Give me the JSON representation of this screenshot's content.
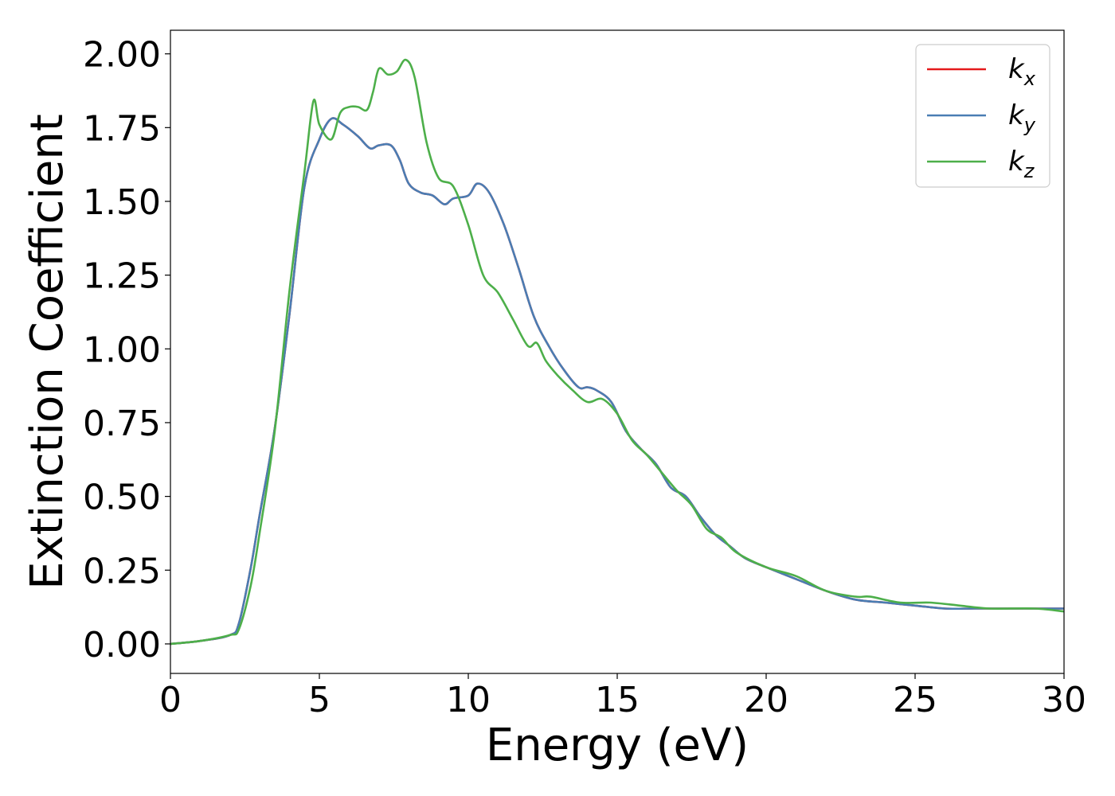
{
  "chart_data": {
    "type": "line",
    "xlabel": "Energy (eV)",
    "ylabel": "Extinction Coefficient",
    "xlim": [
      0,
      30
    ],
    "ylim": [
      -0.1,
      2.08
    ],
    "xticks": [
      0,
      5,
      10,
      15,
      20,
      25,
      30
    ],
    "xtick_labels": [
      "0",
      "5",
      "10",
      "15",
      "20",
      "25",
      "30"
    ],
    "yticks": [
      0,
      0.25,
      0.5,
      0.75,
      1.0,
      1.25,
      1.5,
      1.75,
      2.0
    ],
    "ytick_labels": [
      "0.00",
      "0.25",
      "0.50",
      "0.75",
      "1.00",
      "1.25",
      "1.50",
      "1.75",
      "2.00"
    ],
    "grid": false,
    "legend_position": "top-right",
    "series": [
      {
        "name": "k",
        "subscript": "x",
        "color": "#e41a1c",
        "x": [
          0,
          1,
          2,
          2.3,
          2.7,
          3.0,
          3.5,
          4.0,
          4.5,
          5.0,
          5.4,
          5.8,
          6.3,
          6.7,
          7.0,
          7.4,
          7.7,
          8.0,
          8.4,
          8.8,
          9.2,
          9.5,
          10.0,
          10.3,
          10.7,
          11.2,
          11.7,
          12.2,
          12.7,
          13.2,
          13.7,
          14.0,
          14.3,
          14.8,
          15.3,
          15.8,
          16.3,
          16.8,
          17.3,
          17.8,
          18.3,
          18.8,
          19.3,
          20.0,
          21.0,
          22.0,
          23.0,
          24.0,
          25.0,
          26.0,
          27.0,
          28.0,
          29.0,
          30.0
        ],
        "y": [
          0.0,
          0.01,
          0.03,
          0.07,
          0.26,
          0.44,
          0.73,
          1.12,
          1.55,
          1.71,
          1.78,
          1.76,
          1.72,
          1.68,
          1.69,
          1.69,
          1.64,
          1.56,
          1.53,
          1.52,
          1.49,
          1.51,
          1.52,
          1.56,
          1.53,
          1.42,
          1.27,
          1.11,
          1.01,
          0.93,
          0.87,
          0.87,
          0.86,
          0.82,
          0.72,
          0.66,
          0.61,
          0.53,
          0.5,
          0.43,
          0.37,
          0.33,
          0.29,
          0.26,
          0.22,
          0.18,
          0.15,
          0.14,
          0.13,
          0.12,
          0.12,
          0.12,
          0.12,
          0.12
        ]
      },
      {
        "name": "k",
        "subscript": "y",
        "color": "#4a7db3",
        "x": [
          0,
          1,
          2,
          2.3,
          2.7,
          3.0,
          3.5,
          4.0,
          4.5,
          5.0,
          5.4,
          5.8,
          6.3,
          6.7,
          7.0,
          7.4,
          7.7,
          8.0,
          8.4,
          8.8,
          9.2,
          9.5,
          10.0,
          10.3,
          10.7,
          11.2,
          11.7,
          12.2,
          12.7,
          13.2,
          13.7,
          14.0,
          14.3,
          14.8,
          15.3,
          15.8,
          16.3,
          16.8,
          17.3,
          17.8,
          18.3,
          18.8,
          19.3,
          20.0,
          21.0,
          22.0,
          23.0,
          24.0,
          25.0,
          26.0,
          27.0,
          28.0,
          29.0,
          30.0
        ],
        "y": [
          0.0,
          0.01,
          0.03,
          0.07,
          0.26,
          0.44,
          0.73,
          1.12,
          1.55,
          1.71,
          1.78,
          1.76,
          1.72,
          1.68,
          1.69,
          1.69,
          1.64,
          1.56,
          1.53,
          1.52,
          1.49,
          1.51,
          1.52,
          1.56,
          1.53,
          1.42,
          1.27,
          1.11,
          1.01,
          0.93,
          0.87,
          0.87,
          0.86,
          0.82,
          0.72,
          0.66,
          0.61,
          0.53,
          0.5,
          0.43,
          0.37,
          0.33,
          0.29,
          0.26,
          0.22,
          0.18,
          0.15,
          0.14,
          0.13,
          0.12,
          0.12,
          0.12,
          0.12,
          0.12
        ]
      },
      {
        "name": "k",
        "subscript": "z",
        "color": "#4daf4a",
        "x": [
          0,
          1,
          2,
          2.3,
          2.7,
          3.0,
          3.5,
          4.0,
          4.5,
          4.8,
          5.0,
          5.4,
          5.7,
          6.0,
          6.3,
          6.6,
          6.8,
          7.0,
          7.3,
          7.6,
          7.9,
          8.2,
          8.6,
          9.0,
          9.5,
          10.0,
          10.5,
          11.0,
          11.5,
          12.0,
          12.3,
          12.6,
          13.0,
          13.5,
          14.0,
          14.5,
          15.0,
          15.5,
          16.0,
          16.5,
          17.0,
          17.5,
          18.0,
          18.5,
          19.0,
          20.0,
          21.0,
          22.0,
          23.0,
          23.5,
          24.5,
          25.5,
          26.5,
          27.5,
          29.0,
          30.0
        ],
        "y": [
          0.0,
          0.01,
          0.03,
          0.05,
          0.2,
          0.38,
          0.72,
          1.2,
          1.6,
          1.84,
          1.76,
          1.71,
          1.8,
          1.82,
          1.82,
          1.81,
          1.87,
          1.95,
          1.93,
          1.94,
          1.98,
          1.92,
          1.7,
          1.58,
          1.55,
          1.42,
          1.25,
          1.19,
          1.1,
          1.01,
          1.02,
          0.96,
          0.91,
          0.86,
          0.82,
          0.83,
          0.78,
          0.69,
          0.64,
          0.58,
          0.52,
          0.47,
          0.39,
          0.36,
          0.31,
          0.26,
          0.23,
          0.18,
          0.16,
          0.16,
          0.14,
          0.14,
          0.13,
          0.12,
          0.12,
          0.11
        ]
      }
    ]
  }
}
